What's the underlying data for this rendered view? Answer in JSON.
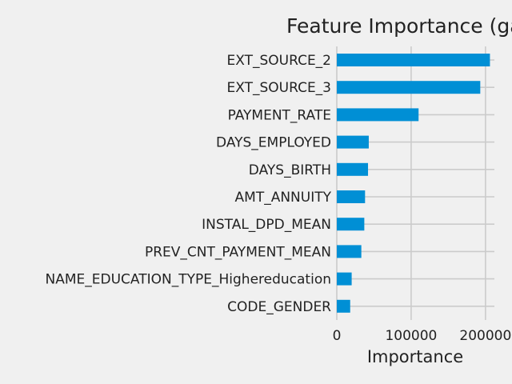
{
  "chart_data": {
    "type": "bar",
    "orientation": "horizontal",
    "title": "Feature Importance (ga",
    "xlabel": "Importance",
    "ylabel": "",
    "xlim": [
      0,
      212000
    ],
    "xticks": [
      0,
      100000,
      200000
    ],
    "xtick_labels": [
      "0",
      "100000",
      "200000"
    ],
    "grid": true,
    "bar_color": "#008fd5",
    "categories": [
      "EXT_SOURCE_2",
      "EXT_SOURCE_3",
      "PAYMENT_RATE",
      "DAYS_EMPLOYED",
      "DAYS_BIRTH",
      "AMT_ANNUITY",
      "INSTAL_DPD_MEAN",
      "PREV_CNT_PAYMENT_MEAN",
      "NAME_EDUCATION_TYPE_Highereducation",
      "CODE_GENDER"
    ],
    "values": [
      206000,
      193000,
      110000,
      43000,
      42000,
      38000,
      37000,
      33000,
      20000,
      18000
    ]
  }
}
